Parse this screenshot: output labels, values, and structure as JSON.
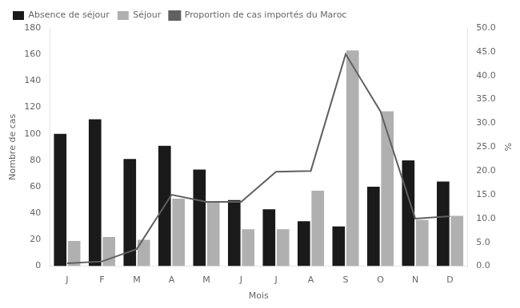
{
  "chart_data": {
    "type": "bar",
    "categories": [
      "J",
      "F",
      "M",
      "A",
      "M",
      "J",
      "J",
      "A",
      "S",
      "O",
      "N",
      "D"
    ],
    "series": [
      {
        "name": "Absence de séjour",
        "type": "bar",
        "color": "#1a1a1a",
        "values": [
          100,
          111,
          81,
          91,
          73,
          50,
          43,
          34,
          30,
          60,
          80,
          64
        ]
      },
      {
        "name": "Séjour",
        "type": "bar",
        "color": "#b0b0b0",
        "values": [
          19,
          22,
          20,
          51,
          48,
          28,
          28,
          57,
          163,
          117,
          35,
          38
        ]
      },
      {
        "name": "Proportion de cas importés du Maroc",
        "type": "line",
        "color": "#606060",
        "marker": "none",
        "line_style": "solid",
        "axis": "y2",
        "values": [
          0.6,
          1.0,
          3.6,
          15.0,
          13.5,
          13.5,
          19.8,
          20.0,
          44.5,
          32.5,
          10.0,
          10.5
        ]
      }
    ],
    "xlabel": "Mois",
    "ylabel": "Nombre de cas",
    "y2label": "%",
    "ylim": [
      0,
      180
    ],
    "yticks": [
      0,
      20,
      40,
      60,
      80,
      100,
      120,
      140,
      160,
      180
    ],
    "y2lim": [
      0,
      50
    ],
    "y2ticks": [
      {
        "value": 0,
        "label": "0.0"
      },
      {
        "value": 5,
        "label": "5.0"
      },
      {
        "value": 10,
        "label": "10.0"
      },
      {
        "value": 15,
        "label": "15.0"
      },
      {
        "value": 20,
        "label": "20.0"
      },
      {
        "value": 25,
        "label": "25.0"
      },
      {
        "value": 30,
        "label": "30.0"
      },
      {
        "value": 35,
        "label": "35.0"
      },
      {
        "value": 40,
        "label": "40.0"
      },
      {
        "value": 45,
        "label": "45.0"
      },
      {
        "value": 50,
        "label": "50.0"
      }
    ],
    "grid": false,
    "legend": "upper left"
  }
}
